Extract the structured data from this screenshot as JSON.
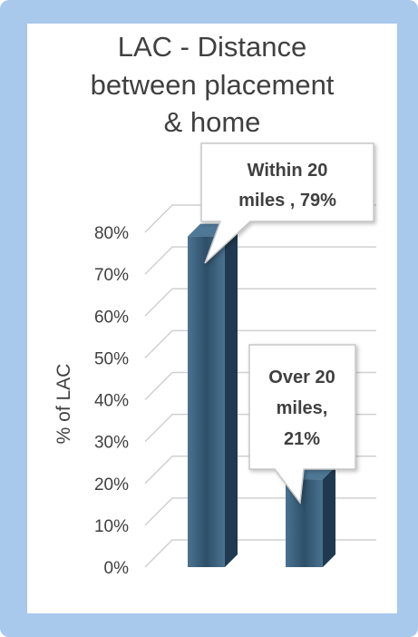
{
  "chart_data": {
    "type": "bar",
    "title_lines": [
      "LAC - Distance",
      "between placement",
      "& home"
    ],
    "ylabel": "% of LAC",
    "ylim": [
      0,
      80
    ],
    "yticks": [
      "0%",
      "10%",
      "20%",
      "30%",
      "40%",
      "50%",
      "60%",
      "70%",
      "80%"
    ],
    "categories": [
      "Within 20 miles",
      "Over 20 miles"
    ],
    "values": [
      79,
      21
    ],
    "data_labels": [
      [
        "Within 20",
        "miles , 79%"
      ],
      [
        "Over 20",
        "miles,",
        "21%"
      ]
    ],
    "grid": true,
    "colors": {
      "bar": "#3b5f7a",
      "bar_side": "#1f3a50",
      "bar_top": "#4e7896",
      "grid": "#d0d0d0"
    }
  }
}
